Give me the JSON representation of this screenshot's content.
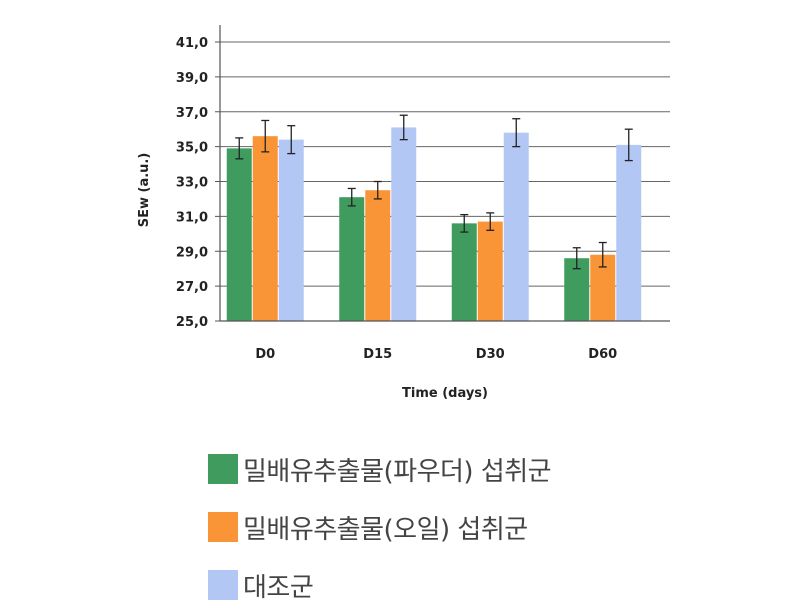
{
  "chart_data": {
    "type": "bar",
    "title": "",
    "xlabel": "Time (days)",
    "ylabel": "SEw (a.u.)",
    "categories": [
      "D0",
      "D15",
      "D30",
      "D60"
    ],
    "ylim": [
      25.0,
      41.0
    ],
    "yticks": [
      "25,0",
      "27,0",
      "29,0",
      "31,0",
      "33,0",
      "35,0",
      "37,0",
      "39,0",
      "41,0"
    ],
    "ytick_values": [
      25,
      27,
      29,
      31,
      33,
      35,
      37,
      39,
      41
    ],
    "grid": true,
    "legend_position": "bottom",
    "series": [
      {
        "name": "밀배유추출물(파우더) 섭취군",
        "color": "#3f9b5e",
        "values": [
          34.9,
          32.1,
          30.6,
          28.6
        ],
        "errors": [
          0.6,
          0.5,
          0.5,
          0.6
        ]
      },
      {
        "name": "밀배유추출물(오일) 섭취군",
        "color": "#f99537",
        "values": [
          35.6,
          32.5,
          30.7,
          28.8
        ],
        "errors": [
          0.9,
          0.5,
          0.5,
          0.7
        ]
      },
      {
        "name": "대조군",
        "color": "#b3c7f5",
        "values": [
          35.4,
          36.1,
          35.8,
          35.1
        ],
        "errors": [
          0.8,
          0.7,
          0.8,
          0.9
        ]
      }
    ]
  }
}
